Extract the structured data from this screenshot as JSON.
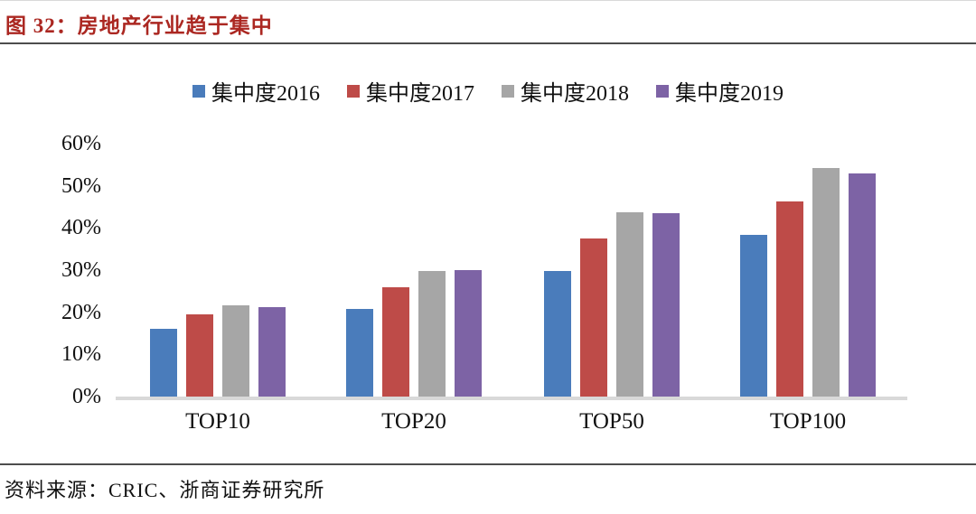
{
  "header": {
    "title": "图 32：房地产行业趋于集中"
  },
  "footer": {
    "source": "资料来源：CRIC、浙商证券研究所"
  },
  "colors": {
    "title_red": "#AB2721",
    "divider": "#4d4d4d",
    "axis_line": "#d9d9d9",
    "text": "#111111"
  },
  "chart_data": {
    "type": "bar",
    "title": "房地产行业趋于集中",
    "categories": [
      "TOP10",
      "TOP20",
      "TOP50",
      "TOP100"
    ],
    "series": [
      {
        "name": "集中度2016",
        "color": "#4A7CBB",
        "values": [
          16.0,
          20.8,
          29.7,
          38.4
        ]
      },
      {
        "name": "集中度2017",
        "color": "#BE4B48",
        "values": [
          19.4,
          26.0,
          37.4,
          46.2
        ]
      },
      {
        "name": "集中度2018",
        "color": "#A6A6A6",
        "values": [
          21.7,
          29.8,
          43.7,
          54.2
        ]
      },
      {
        "name": "集中度2019",
        "color": "#7D63A5",
        "values": [
          21.2,
          30.1,
          43.5,
          53.0
        ]
      }
    ],
    "xlabel": "",
    "ylabel": "",
    "ylim": [
      0,
      60
    ],
    "ytick_step": 10,
    "ytick_labels": [
      "0%",
      "10%",
      "20%",
      "30%",
      "40%",
      "50%",
      "60%"
    ],
    "grid": false,
    "legend_position": "top"
  }
}
